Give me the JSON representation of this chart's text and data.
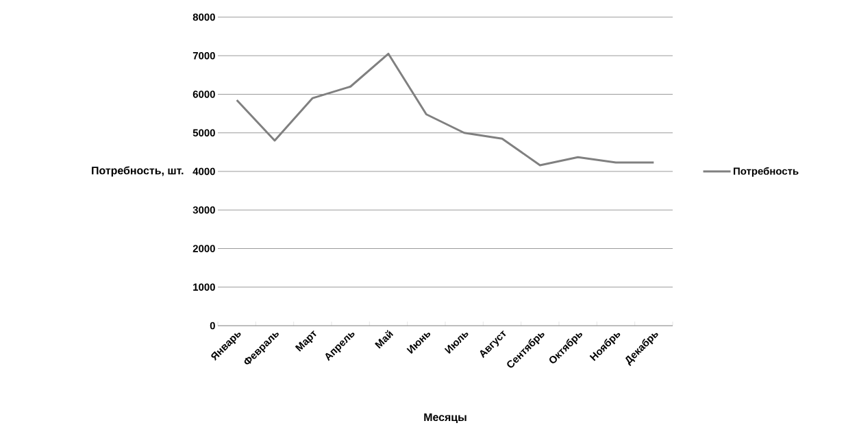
{
  "chart_data": {
    "type": "line",
    "xlabel": "Месяцы",
    "ylabel": "Потребность, шт.",
    "categories": [
      "Январь",
      "Февраль",
      "Март",
      "Апрель",
      "Май",
      "Июнь",
      "Июль",
      "Август",
      "Сентябрь",
      "Октябрь",
      "Ноябрь",
      "Декабрь"
    ],
    "series": [
      {
        "name": "Потребность",
        "color": "#808080",
        "values": [
          5850,
          4800,
          5900,
          6200,
          7050,
          5480,
          5000,
          4850,
          4160,
          4370,
          4230,
          4230
        ]
      }
    ],
    "ylim": [
      0,
      8000
    ],
    "yticks": [
      0,
      1000,
      2000,
      3000,
      4000,
      5000,
      6000,
      7000,
      8000
    ],
    "grid": "y",
    "legend": "right"
  }
}
